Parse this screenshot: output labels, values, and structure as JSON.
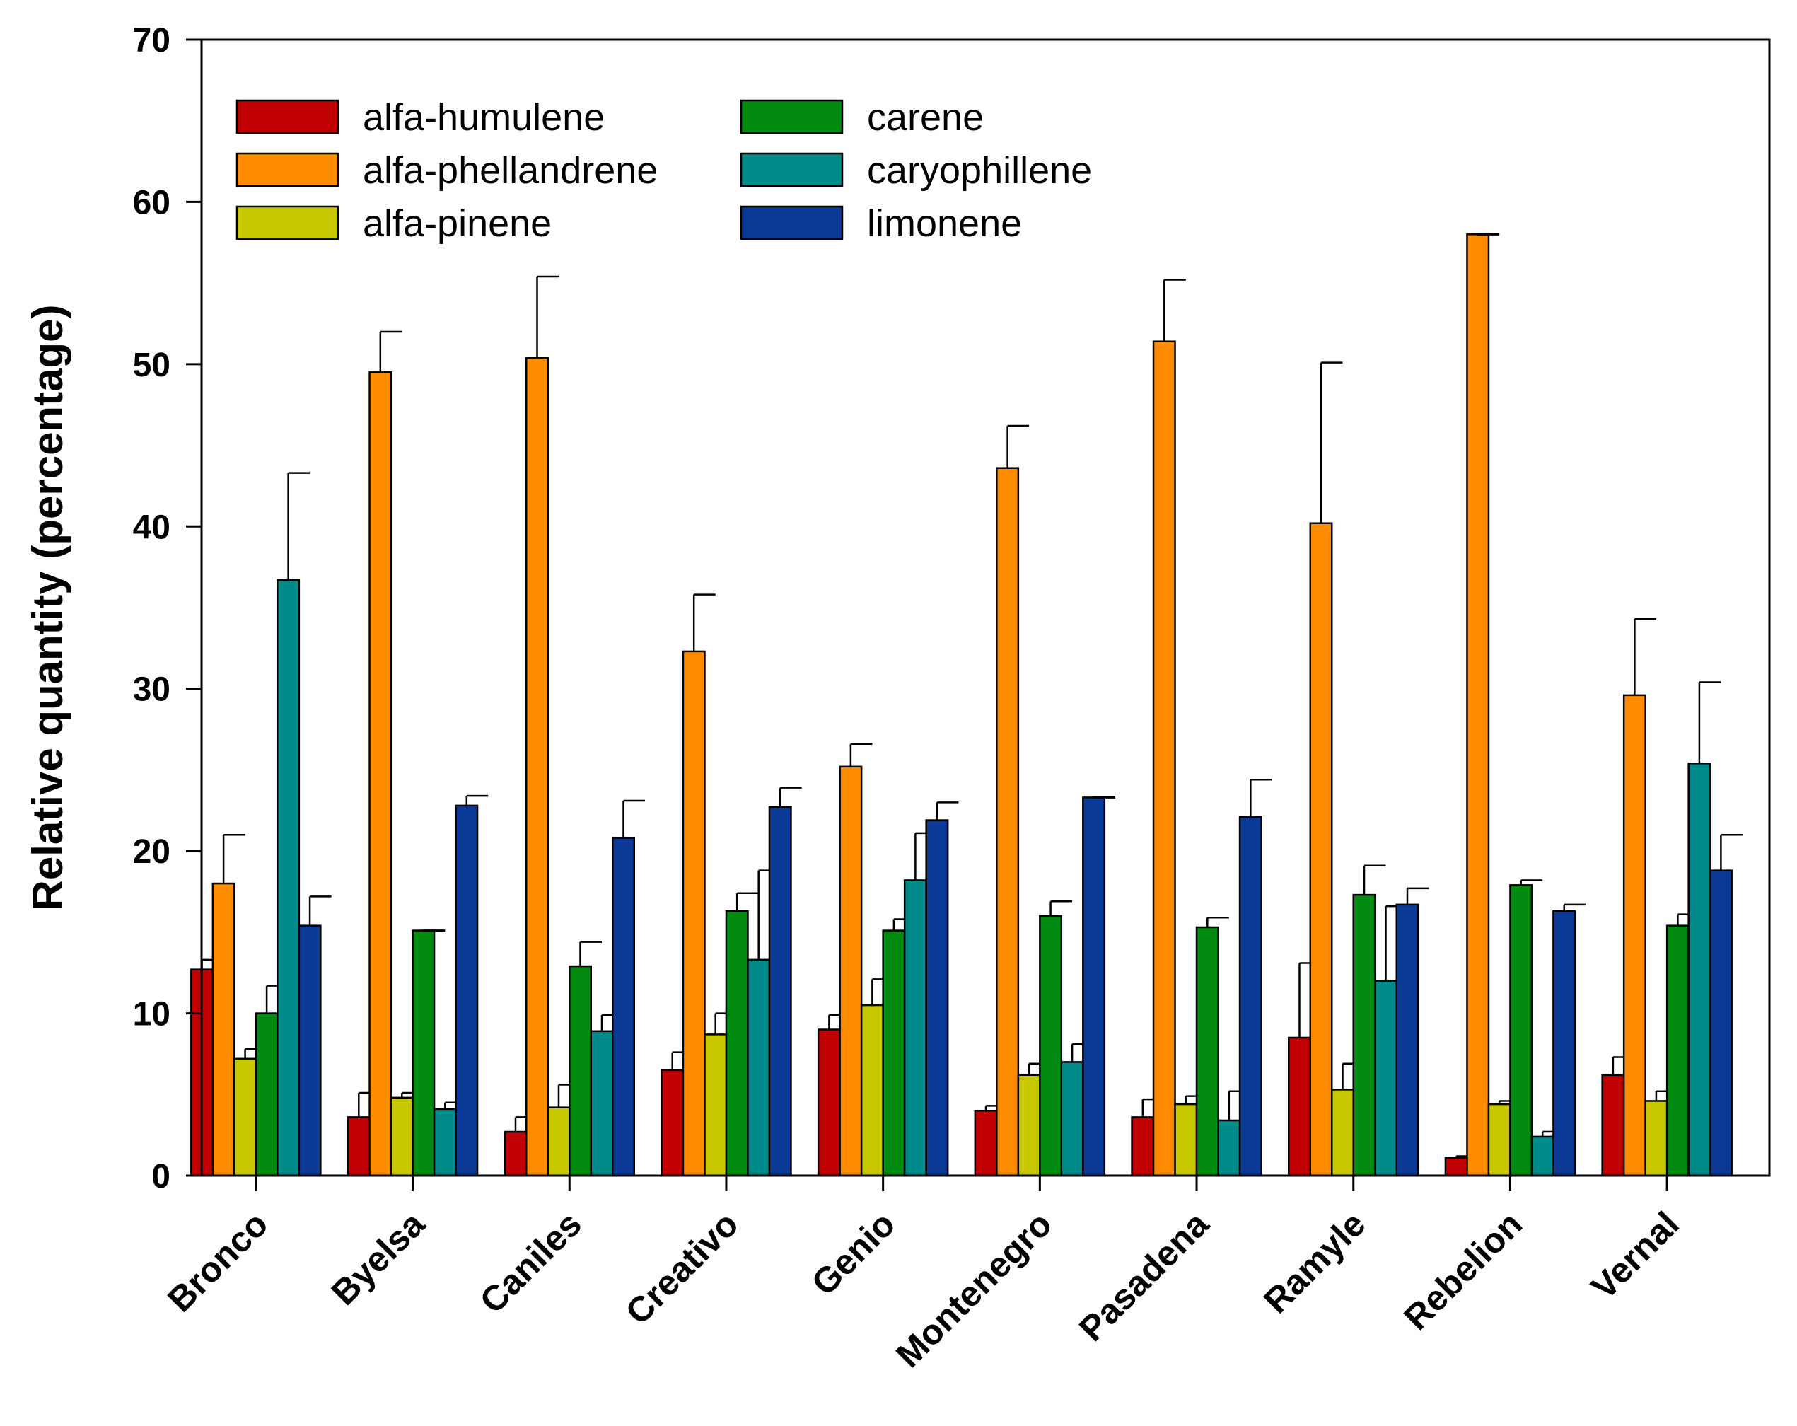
{
  "chart_data": {
    "type": "bar",
    "title": "",
    "xlabel": "",
    "ylabel": "Relative quantity (percentage)",
    "ylim": [
      0,
      70
    ],
    "yticks": [
      0,
      10,
      20,
      30,
      40,
      50,
      60,
      70
    ],
    "yticks_labels": [
      "0",
      "10",
      "20",
      "30",
      "40",
      "50",
      "60",
      "70"
    ],
    "grid": false,
    "legend_position": "top-left",
    "categories": [
      "Bronco",
      "Byelsa",
      "Caniles",
      "Creativo",
      "Genio",
      "Montenegro",
      "Pasadena",
      "Ramyle",
      "Rebelion",
      "Vernal"
    ],
    "series": [
      {
        "name": "alfa-humulene",
        "color": "#c00000",
        "values": [
          12.7,
          3.6,
          2.7,
          6.5,
          9.0,
          4.0,
          3.6,
          8.5,
          1.1,
          6.2
        ],
        "errors": [
          0.6,
          1.5,
          0.9,
          1.1,
          0.9,
          0.3,
          1.1,
          4.6,
          0.1,
          1.1
        ]
      },
      {
        "name": "alfa-phellandrene",
        "color": "#ff8c00",
        "values": [
          18.0,
          49.5,
          50.4,
          32.3,
          25.2,
          43.6,
          51.4,
          40.2,
          58.0,
          29.6
        ],
        "errors": [
          3.0,
          2.5,
          5.0,
          3.5,
          1.4,
          2.6,
          3.8,
          9.9,
          0.0,
          4.7
        ]
      },
      {
        "name": "alfa-pinene",
        "color": "#c8c800",
        "values": [
          7.2,
          4.8,
          4.2,
          8.7,
          10.5,
          6.2,
          4.4,
          5.3,
          4.4,
          4.6
        ],
        "errors": [
          0.6,
          0.3,
          1.4,
          1.3,
          1.6,
          0.7,
          0.5,
          1.6,
          0.2,
          0.6
        ]
      },
      {
        "name": "carene",
        "color": "#008a10",
        "values": [
          10.0,
          15.1,
          12.9,
          16.3,
          15.1,
          16.0,
          15.3,
          17.3,
          17.9,
          15.4
        ],
        "errors": [
          1.7,
          0.0,
          1.5,
          1.1,
          0.7,
          0.9,
          0.6,
          1.8,
          0.3,
          0.7
        ]
      },
      {
        "name": "caryophillene",
        "color": "#008b8b",
        "values": [
          36.7,
          4.1,
          8.9,
          13.3,
          18.2,
          7.0,
          3.4,
          12.0,
          2.4,
          25.4
        ],
        "errors": [
          6.6,
          0.4,
          1.0,
          5.5,
          2.9,
          1.1,
          1.8,
          4.6,
          0.3,
          5.0
        ]
      },
      {
        "name": "limonene",
        "color": "#0a3a96",
        "values": [
          15.4,
          22.8,
          20.8,
          22.7,
          21.9,
          23.3,
          22.1,
          16.7,
          16.3,
          18.8
        ],
        "errors": [
          1.8,
          0.6,
          2.3,
          1.2,
          1.1,
          0.0,
          2.3,
          1.0,
          0.4,
          2.2
        ]
      }
    ]
  }
}
